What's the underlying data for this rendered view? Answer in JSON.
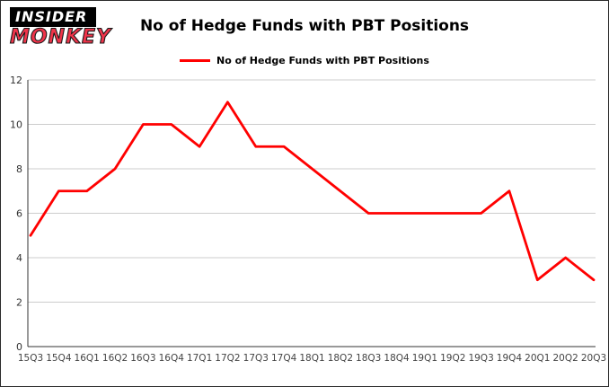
{
  "logo": {
    "line1": "INSIDER",
    "line2": "MONKEY"
  },
  "header": {
    "title": "No of Hedge Funds with PBT Positions"
  },
  "legend": {
    "label": "No of Hedge Funds with PBT Positions",
    "color": "#ff0000"
  },
  "chart_data": {
    "type": "line",
    "title": "No of Hedge Funds with PBT Positions",
    "categories": [
      "15Q3",
      "15Q4",
      "16Q1",
      "16Q2",
      "16Q3",
      "16Q4",
      "17Q1",
      "17Q2",
      "17Q3",
      "17Q4",
      "18Q1",
      "18Q2",
      "18Q3",
      "18Q4",
      "19Q1",
      "19Q2",
      "19Q3",
      "19Q4",
      "20Q1",
      "20Q2",
      "20Q3"
    ],
    "series": [
      {
        "name": "No of Hedge Funds with PBT Positions",
        "color": "#ff0000",
        "values": [
          5,
          7,
          7,
          8,
          10,
          10,
          9,
          11,
          9,
          9,
          8,
          7,
          6,
          6,
          6,
          6,
          6,
          7,
          3,
          4,
          3
        ]
      }
    ],
    "ylim": [
      0,
      12
    ],
    "yticks": [
      0,
      2,
      4,
      6,
      8,
      10,
      12
    ],
    "grid": "horizontal",
    "legend_position": "top-center"
  }
}
